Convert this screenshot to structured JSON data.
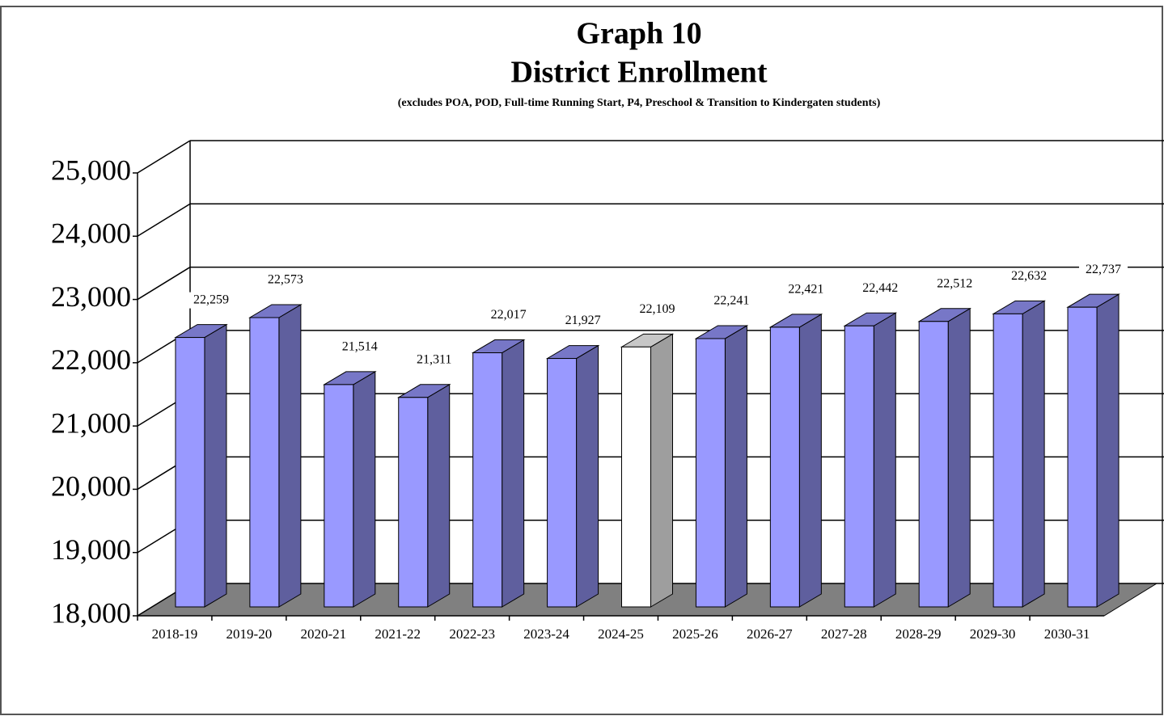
{
  "chart_data": {
    "type": "bar3d",
    "title": "Graph 10",
    "subtitle": "District Enrollment",
    "note": "(excludes POA, POD, Full-time Running Start, P4, Preschool & Transition to Kindergaten students)",
    "categories": [
      "2018-19",
      "2019-20",
      "2020-21",
      "2021-22",
      "2022-23",
      "2023-24",
      "2024-25",
      "2025-26",
      "2026-27",
      "2027-28",
      "2028-29",
      "2029-30",
      "2030-31"
    ],
    "values": [
      22259,
      22573,
      21514,
      21311,
      22017,
      21927,
      22109,
      22241,
      22421,
      22442,
      22512,
      22632,
      22737
    ],
    "value_labels": [
      "22,259",
      "22,573",
      "21,514",
      "21,311",
      "22,017",
      "21,927",
      "22,109",
      "22,241",
      "22,421",
      "22,442",
      "22,512",
      "22,632",
      "22,737"
    ],
    "colors": [
      "#9999ff",
      "#9999ff",
      "#9999ff",
      "#9999ff",
      "#9999ff",
      "#9999ff",
      "#ffffff",
      "#9999ff",
      "#9999ff",
      "#9999ff",
      "#9999ff",
      "#9999ff",
      "#9999ff"
    ],
    "ylim": [
      18000,
      25000
    ],
    "yticks": [
      {
        "value": 18000,
        "label": "18,000"
      },
      {
        "value": 19000,
        "label": "19,000"
      },
      {
        "value": 20000,
        "label": "20,000"
      },
      {
        "value": 21000,
        "label": "21,000"
      },
      {
        "value": 22000,
        "label": "22,000"
      },
      {
        "value": 23000,
        "label": "23,000"
      },
      {
        "value": 24000,
        "label": "24,000"
      },
      {
        "value": 25000,
        "label": "25,000"
      }
    ],
    "grid": true
  }
}
